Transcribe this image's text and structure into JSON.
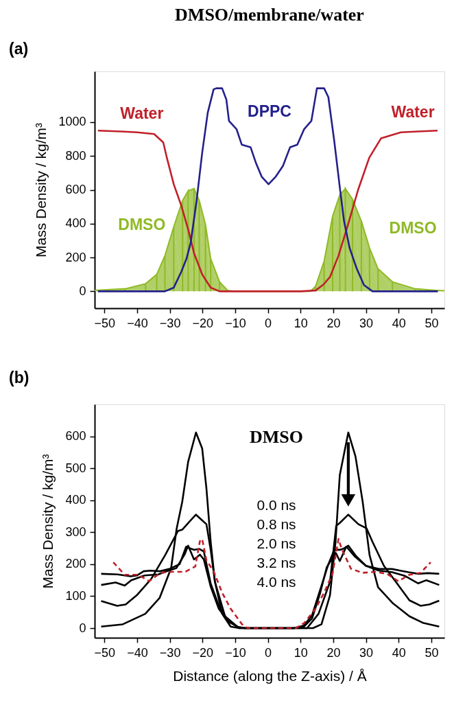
{
  "chart_data": [
    {
      "type": "line",
      "title": "DMSO/membrane/water",
      "ylabel": "Mass Density / kg/m³",
      "xlim": [
        -53,
        54
      ],
      "ylim": [
        -100,
        1300
      ],
      "xticks": [
        -50,
        -40,
        -30,
        -20,
        -10,
        0,
        10,
        20,
        30,
        40,
        50
      ],
      "yticks": [
        0,
        200,
        400,
        600,
        800,
        1000
      ],
      "series": [
        {
          "type": "area",
          "name": "DMSO",
          "color": "#8fba26",
          "x": [
            -53,
            -43.6,
            -37.4,
            -34,
            -31.5,
            -28.8,
            -26.1,
            -24.4,
            -22.6,
            -21,
            -19.1,
            -17.5,
            -14.8,
            -12.3,
            -10.5,
            13,
            14.6,
            17.2,
            19.8,
            22,
            23.7,
            25.9,
            28.6,
            31.1,
            33.7,
            38.1,
            45,
            51.9,
            54
          ],
          "values": [
            5,
            15,
            45,
            100,
            211,
            381,
            537,
            593,
            607,
            537,
            396,
            193,
            56,
            5,
            0,
            0,
            30,
            178,
            444,
            570,
            607,
            544,
            415,
            256,
            133,
            56,
            15,
            5,
            3
          ]
        },
        {
          "name": "Water",
          "color": "#c0202a",
          "x": [
            -52,
            -45,
            -40,
            -34.8,
            -32,
            -30.9,
            -28.8,
            -26.5,
            -24.4,
            -22.6,
            -20.1,
            -17.5,
            -14.8,
            -10,
            0,
            10,
            14.6,
            17,
            19,
            21.6,
            24.1,
            27.6,
            31,
            34.6,
            40.7,
            46,
            51.9
          ],
          "values": [
            950,
            945,
            940,
            930,
            880,
            789,
            633,
            507,
            367,
            226,
            100,
            22,
            0,
            0,
            0,
            0,
            5,
            40,
            85,
            211,
            367,
            600,
            789,
            904,
            940,
            945,
            950
          ]
        },
        {
          "name": "DPPC",
          "color": "#23208c",
          "x": [
            -52,
            -40,
            -31.5,
            -28.8,
            -26.5,
            -24.9,
            -23.6,
            -21.8,
            -20.1,
            -18.4,
            -16.6,
            -15.8,
            -14,
            -12.7,
            -11.9,
            -9.6,
            -8,
            -5.3,
            -3.6,
            -1.9,
            0.2,
            2.4,
            4.6,
            6.8,
            9,
            11.1,
            13.3,
            15,
            17.2,
            18.5,
            20.3,
            22,
            23.3,
            25,
            27.2,
            29.4,
            32,
            40,
            52
          ],
          "values": [
            0,
            0,
            0,
            22,
            115,
            193,
            289,
            537,
            819,
            1056,
            1194,
            1200,
            1200,
            1133,
            1007,
            959,
            867,
            852,
            756,
            678,
            633,
            678,
            741,
            852,
            867,
            959,
            1007,
            1200,
            1200,
            1148,
            889,
            615,
            415,
            256,
            133,
            37,
            0,
            0,
            0
          ]
        }
      ],
      "annotations": [
        "(a)"
      ]
    },
    {
      "type": "line",
      "xlabel": "Distance (along the Z-axis) / Å",
      "ylabel": "Mass Density / kg/m³",
      "xlim": [
        -53,
        54
      ],
      "ylim": [
        -30,
        700
      ],
      "xticks": [
        -50,
        -40,
        -30,
        -20,
        -10,
        0,
        10,
        20,
        30,
        40,
        50
      ],
      "yticks": [
        0,
        100,
        200,
        300,
        400,
        500,
        600
      ],
      "series": [
        {
          "color": "#000000",
          "x": [
            -51,
            -44.4,
            -37.5,
            -33.1,
            -29.6,
            -27.9,
            -26.2,
            -24.4,
            -22,
            -20.1,
            -18.8,
            -17.5,
            -16.2,
            -14,
            -11.4,
            -8.8,
            13.8,
            16.4,
            19,
            20.7,
            22,
            24.6,
            26.8,
            29,
            31.1,
            33.7,
            38.1,
            43.3,
            47.6,
            52.4
          ],
          "values": [
            5,
            12,
            45,
            95,
            188,
            312,
            395,
            520,
            612,
            562,
            437,
            270,
            145,
            45,
            5,
            0,
            0,
            12,
            103,
            270,
            479,
            612,
            537,
            395,
            229,
            128,
            79,
            37,
            16,
            5
          ]
        },
        {
          "color": "#000000",
          "x": [
            -51,
            -46.1,
            -43.5,
            -40.1,
            -35.7,
            -31.4,
            -28.8,
            -27.5,
            -26.2,
            -24,
            -22,
            -20.1,
            -18.8,
            -17.5,
            -16.2,
            -13.1,
            -8.8,
            12,
            15.5,
            19,
            20.9,
            22,
            24.6,
            27.7,
            30.2,
            32,
            35.5,
            39.8,
            43.3,
            46.7,
            49.4,
            52.4
          ],
          "values": [
            85,
            70,
            74,
            103,
            154,
            229,
            279,
            304,
            308,
            333,
            355,
            337,
            325,
            245,
            145,
            37,
            0,
            0,
            45,
            145,
            320,
            329,
            355,
            325,
            312,
            270,
            195,
            136,
            87,
            70,
            74,
            86
          ]
        },
        {
          "color": "#000000",
          "x": [
            -51,
            -46.6,
            -43.8,
            -41.8,
            -37.7,
            -33.5,
            -31.5,
            -28,
            -25.5,
            -24.4,
            -22.6,
            -20.8,
            -19.6,
            -17.5,
            -15,
            -12,
            -9,
            -7,
            8,
            11,
            13.5,
            16,
            18,
            19.5,
            20.8,
            22,
            24,
            26.5,
            30,
            34,
            38,
            42,
            46,
            48.5,
            52.4
          ],
          "values": [
            135,
            143,
            133,
            150,
            165,
            168,
            176,
            188,
            230,
            258,
            215,
            230,
            215,
            130,
            60,
            20,
            3,
            0,
            0,
            5,
            30,
            110,
            190,
            215,
            235,
            210,
            255,
            225,
            195,
            180,
            175,
            163,
            140,
            150,
            135
          ]
        },
        {
          "color": "#000000",
          "x": [
            -51,
            -46,
            -42,
            -40,
            -38,
            -36,
            -33,
            -30,
            -27,
            -25,
            -24,
            -22.5,
            -21,
            -19.6,
            -17.5,
            -15,
            -12,
            -9,
            -7,
            8,
            11,
            13.5,
            16,
            18.5,
            20.3,
            22,
            23,
            24.6,
            27,
            30,
            34,
            38,
            40.5,
            43,
            46,
            49,
            52.4
          ],
          "values": [
            170,
            168,
            162,
            165,
            178,
            180,
            178,
            186,
            200,
            255,
            250,
            245,
            248,
            240,
            140,
            70,
            20,
            3,
            0,
            0,
            8,
            40,
            120,
            200,
            245,
            245,
            248,
            258,
            225,
            195,
            185,
            185,
            180,
            175,
            170,
            172,
            170
          ]
        },
        {
          "color": "#c0202a",
          "line_style": "dashed",
          "x": [
            -47.3,
            -43.8,
            -39.7,
            -36.3,
            -32.9,
            -29.4,
            -25.3,
            -22.2,
            -20.8,
            -20.1,
            -18.8,
            -16.6,
            -14,
            -11.4,
            -7.9,
            -6.2,
            8.5,
            11.1,
            14.6,
            17.2,
            19.8,
            21.6,
            22.5,
            25.4,
            28.9,
            33,
            36.4,
            39.9,
            43.3,
            46.7,
            49.8
          ],
          "values": [
            206,
            167,
            167,
            147,
            173,
            176,
            176,
            193,
            272,
            279,
            212,
            178,
            111,
            61,
            12,
            0,
            0,
            16,
            61,
            111,
            171,
            279,
            250,
            186,
            173,
            176,
            170,
            147,
            167,
            173,
            206
          ]
        }
      ],
      "annotations": [
        "(b)",
        "DMSO",
        "0.0 ns",
        "0.8 ns",
        "2.0 ns",
        "3.2 ns",
        "4.0 ns"
      ]
    }
  ]
}
